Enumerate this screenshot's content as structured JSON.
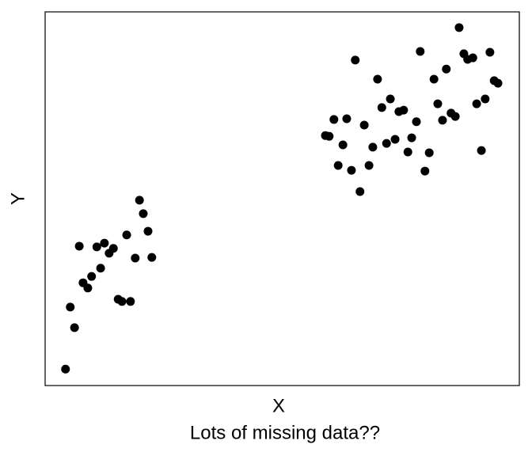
{
  "chart_data": {
    "type": "scatter",
    "x_label": "X",
    "y_label": "Y",
    "caption": "Lots of missing data??",
    "color": "#000000",
    "x": [
      4.3,
      5.3,
      6.2,
      7.2,
      8.0,
      9.0,
      9.8,
      10.9,
      11.7,
      12.5,
      13.5,
      14.4,
      15.4,
      16.2,
      17.2,
      18.0,
      19.0,
      19.9,
      20.7,
      21.7,
      22.5,
      59.1,
      59.9,
      60.9,
      61.8,
      62.8,
      63.6,
      64.6,
      65.4,
      66.4,
      67.3,
      68.3,
      69.1,
      70.1,
      71.0,
      72.0,
      72.8,
      73.8,
      74.6,
      75.6,
      76.5,
      77.3,
      78.3,
      79.1,
      80.1,
      81.0,
      82.0,
      82.8,
      83.8,
      84.6,
      85.6,
      86.5,
      87.3,
      88.3,
      89.1,
      90.2,
      91.0,
      92.0,
      92.8,
      93.8,
      94.7,
      95.5
    ],
    "values": [
      4.4,
      21.0,
      15.5,
      37.3,
      27.5,
      26.1,
      29.2,
      37.1,
      31.4,
      38.1,
      35.4,
      36.7,
      23.1,
      22.5,
      40.3,
      22.5,
      34.1,
      49.6,
      46.0,
      41.3,
      34.3,
      66.9,
      66.7,
      71.2,
      58.9,
      64.4,
      71.4,
      57.6,
      87.1,
      51.9,
      69.7,
      58.9,
      63.8,
      82.0,
      74.4,
      64.8,
      76.7,
      65.9,
      73.3,
      73.7,
      62.5,
      66.3,
      70.6,
      89.4,
      57.4,
      62.3,
      82.0,
      75.4,
      71.0,
      84.7,
      72.9,
      72.0,
      95.8,
      88.8,
      87.3,
      87.7,
      75.4,
      62.9,
      76.7,
      89.2,
      81.6,
      80.9
    ],
    "xlim": [
      0,
      100
    ],
    "ylim": [
      0,
      100
    ]
  }
}
